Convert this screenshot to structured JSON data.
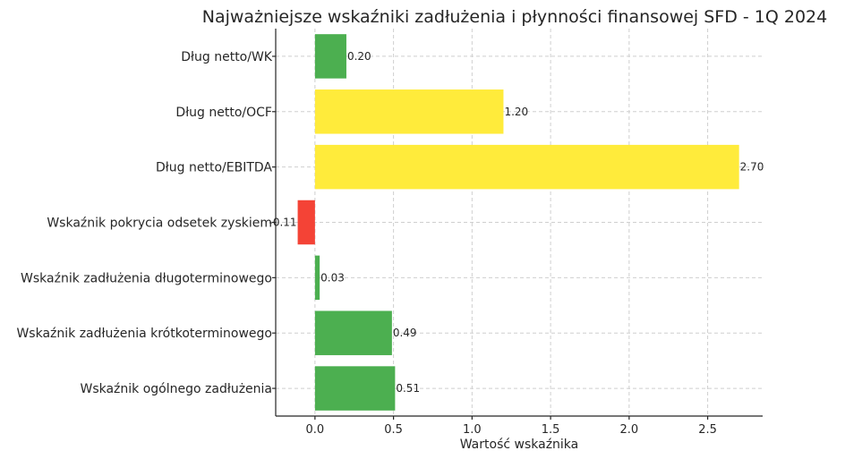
{
  "chart_data": {
    "type": "bar",
    "orientation": "horizontal",
    "title": "Najważniejsze wskaźniki zadłużenia i płynności finansowej SFD - 1Q 2024",
    "xlabel": "Wartość wskaźnika",
    "ylabel": "",
    "categories": [
      "Dług netto/WK",
      "Dług netto/OCF",
      "Dług netto/EBITDA",
      "Wskaźnik pokrycia odsetek zyskiem",
      "Wskaźnik zadłużenia długoterminowego",
      "Wskaźnik zadłużenia krótkoterminowego",
      "Wskaźnik ogólnego zadłużenia"
    ],
    "values": [
      0.2,
      1.2,
      2.7,
      -0.11,
      0.03,
      0.49,
      0.51
    ],
    "value_labels": [
      "0.20",
      "1.20",
      "2.70",
      "-0.11",
      "0.03",
      "0.49",
      "0.51"
    ],
    "bar_colors": [
      "#4caf50",
      "#ffeb3b",
      "#ffeb3b",
      "#f44336",
      "#4caf50",
      "#4caf50",
      "#4caf50"
    ],
    "xlim": [
      -0.25,
      2.85
    ],
    "xticks": [
      0.0,
      0.5,
      1.0,
      1.5,
      2.0,
      2.5
    ],
    "xtick_labels": [
      "0.0",
      "0.5",
      "1.0",
      "1.5",
      "2.0",
      "2.5"
    ],
    "grid": true,
    "legend": "none"
  }
}
